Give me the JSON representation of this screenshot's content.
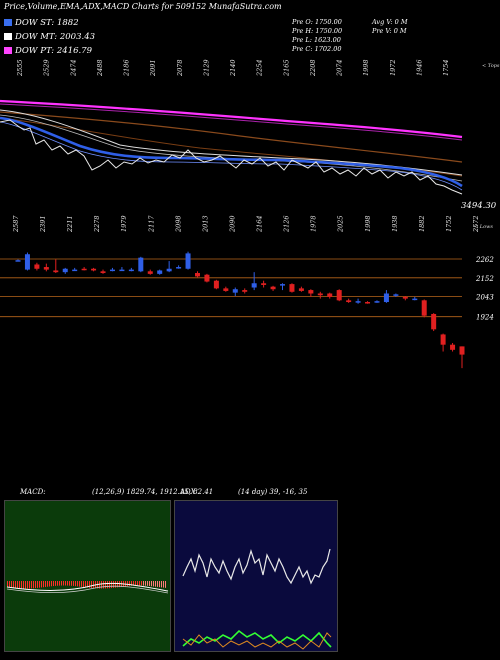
{
  "header": {
    "title": "Price,Volume,EMA,ADX,MACD Charts for 509152  MunafaSutra.com",
    "legend": [
      {
        "label": "DOW ST: 1882",
        "color": "#3a6ff0"
      },
      {
        "label": "DOW MT: 2003.43",
        "color": "#ffffff"
      },
      {
        "label": "DOW PT: 2416.79",
        "color": "#ff44ff"
      }
    ],
    "ohlc": {
      "open": "Pre  O: 1750.00",
      "high": "Pre  H: 1750.00",
      "low": "Pre  L: 1623.00",
      "close": "Pre  C: 1702.00",
      "avg_vol": "Avg V: 0  M",
      "pre_vol": "Pre  V: 0  M"
    }
  },
  "ema_panel": {
    "top_label": "< Tops",
    "bottom_label": "< Lows",
    "last_value": "3494.30",
    "top_values": [
      "2555",
      "2529",
      "2474",
      "2488",
      "2186",
      "2091",
      "2078",
      "2129",
      "2140",
      "2254",
      "2165",
      "2208",
      "2074",
      "1998",
      "1972",
      "1946",
      "1754"
    ],
    "low_values": [
      "2587",
      "2391",
      "2211",
      "2278",
      "1979",
      "2117",
      "2098",
      "2013",
      "2090",
      "2164",
      "2126",
      "1978",
      "2025",
      "1998",
      "1938",
      "1882",
      "1752",
      "2572"
    ]
  },
  "chart_data": {
    "type": "candlestick",
    "title": "Price,Volume,EMA,ADX,MACD Charts for 509152  MunafaSutra.com",
    "price_levels": [
      2262,
      2152,
      2043,
      1924
    ],
    "ohlc_last": {
      "open": 1750,
      "high": 1750,
      "low": 1623,
      "close": 1702
    },
    "candles": [
      {
        "o": 2250,
        "c": 2255,
        "h": 2260,
        "l": 2248
      },
      {
        "o": 2200,
        "c": 2290,
        "h": 2300,
        "l": 2195
      },
      {
        "o": 2230,
        "c": 2205,
        "h": 2240,
        "l": 2195
      },
      {
        "o": 2215,
        "c": 2200,
        "h": 2235,
        "l": 2190
      },
      {
        "o": 2195,
        "c": 2185,
        "h": 2260,
        "l": 2180
      },
      {
        "o": 2185,
        "c": 2205,
        "h": 2210,
        "l": 2175
      },
      {
        "o": 2200,
        "c": 2200,
        "h": 2210,
        "l": 2195
      },
      {
        "o": 2205,
        "c": 2200,
        "h": 2215,
        "l": 2195
      },
      {
        "o": 2205,
        "c": 2195,
        "h": 2210,
        "l": 2190
      },
      {
        "o": 2190,
        "c": 2180,
        "h": 2200,
        "l": 2175
      },
      {
        "o": 2200,
        "c": 2200,
        "h": 2210,
        "l": 2190
      },
      {
        "o": 2200,
        "c": 2200,
        "h": 2215,
        "l": 2195
      },
      {
        "o": 2195,
        "c": 2200,
        "h": 2210,
        "l": 2190
      },
      {
        "o": 2190,
        "c": 2270,
        "h": 2275,
        "l": 2185
      },
      {
        "o": 2190,
        "c": 2175,
        "h": 2200,
        "l": 2170
      },
      {
        "o": 2175,
        "c": 2195,
        "h": 2200,
        "l": 2170
      },
      {
        "o": 2190,
        "c": 2205,
        "h": 2250,
        "l": 2185
      },
      {
        "o": 2215,
        "c": 2215,
        "h": 2225,
        "l": 2205
      },
      {
        "o": 2205,
        "c": 2295,
        "h": 2305,
        "l": 2200
      },
      {
        "o": 2180,
        "c": 2160,
        "h": 2190,
        "l": 2155
      },
      {
        "o": 2170,
        "c": 2130,
        "h": 2175,
        "l": 2125
      },
      {
        "o": 2135,
        "c": 2090,
        "h": 2140,
        "l": 2085
      },
      {
        "o": 2090,
        "c": 2075,
        "h": 2100,
        "l": 2070
      },
      {
        "o": 2065,
        "c": 2085,
        "h": 2095,
        "l": 2045
      },
      {
        "o": 2080,
        "c": 2070,
        "h": 2090,
        "l": 2060
      },
      {
        "o": 2095,
        "c": 2120,
        "h": 2185,
        "l": 2080
      },
      {
        "o": 2120,
        "c": 2110,
        "h": 2135,
        "l": 2095
      },
      {
        "o": 2100,
        "c": 2085,
        "h": 2105,
        "l": 2075
      },
      {
        "o": 2110,
        "c": 2115,
        "h": 2120,
        "l": 2080
      },
      {
        "o": 2115,
        "c": 2070,
        "h": 2120,
        "l": 2065
      },
      {
        "o": 2090,
        "c": 2075,
        "h": 2100,
        "l": 2070
      },
      {
        "o": 2080,
        "c": 2060,
        "h": 2085,
        "l": 2040
      },
      {
        "o": 2060,
        "c": 2050,
        "h": 2070,
        "l": 2030
      },
      {
        "o": 2060,
        "c": 2040,
        "h": 2065,
        "l": 2030
      },
      {
        "o": 2080,
        "c": 2020,
        "h": 2085,
        "l": 2015
      },
      {
        "o": 2020,
        "c": 2010,
        "h": 2030,
        "l": 2005
      },
      {
        "o": 2010,
        "c": 2015,
        "h": 2030,
        "l": 2000
      },
      {
        "o": 2010,
        "c": 2005,
        "h": 2015,
        "l": 2000
      },
      {
        "o": 2010,
        "c": 2015,
        "h": 2020,
        "l": 2005
      },
      {
        "o": 2010,
        "c": 2060,
        "h": 2080,
        "l": 2005
      },
      {
        "o": 2050,
        "c": 2055,
        "h": 2060,
        "l": 2040
      },
      {
        "o": 2040,
        "c": 2030,
        "h": 2045,
        "l": 2020
      },
      {
        "o": 2030,
        "c": 2030,
        "h": 2040,
        "l": 2020
      },
      {
        "o": 2020,
        "c": 1930,
        "h": 2025,
        "l": 1920
      },
      {
        "o": 1940,
        "c": 1850,
        "h": 1945,
        "l": 1840
      },
      {
        "o": 1820,
        "c": 1760,
        "h": 1825,
        "l": 1720
      },
      {
        "o": 1760,
        "c": 1730,
        "h": 1770,
        "l": 1720
      },
      {
        "o": 1750,
        "c": 1702,
        "h": 1750,
        "l": 1623
      }
    ],
    "macd_label": "MACD:",
    "macd_params": "(12,26,9) 1829.74,  1912.15,  82.41",
    "adx_label": "ADX",
    "adx_params": "(14  day) 39,  -16,  35"
  },
  "colors": {
    "macd_bg": "#0b3b0b",
    "adx_bg": "#0a0a3d",
    "bull": "#2f5fe8",
    "bear": "#e02020",
    "level_line": "#b8651a"
  }
}
